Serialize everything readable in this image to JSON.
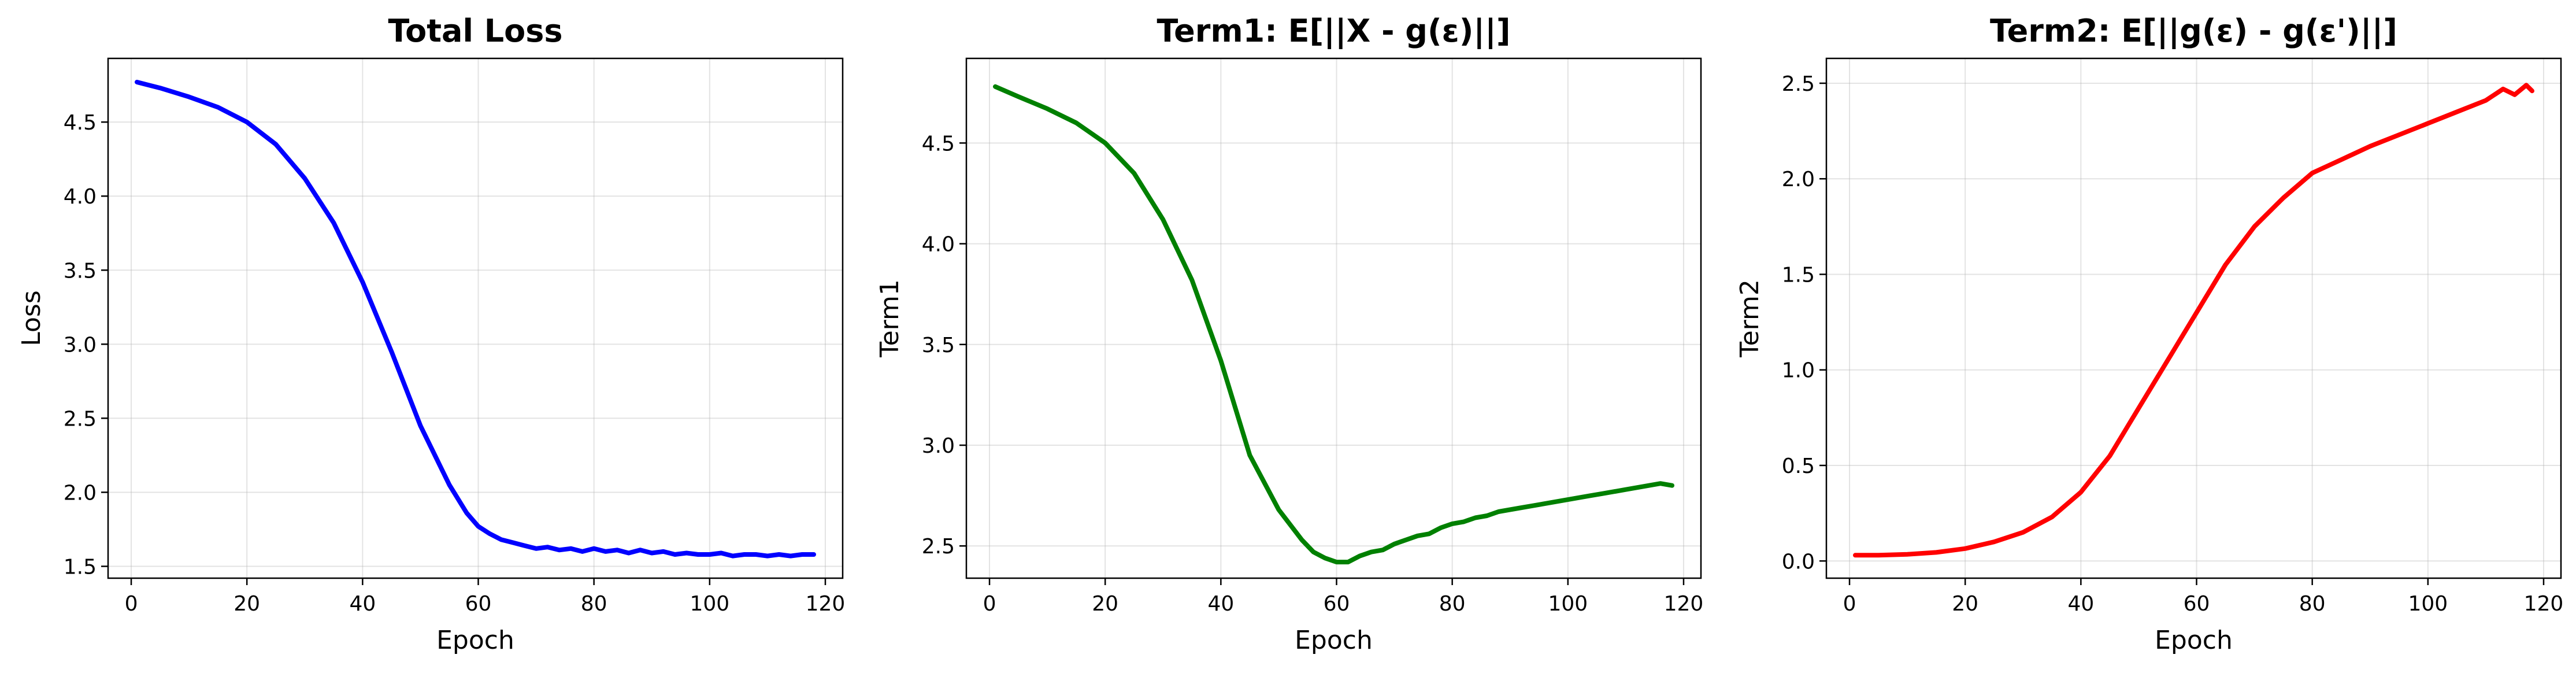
{
  "chart_data": [
    {
      "type": "line",
      "title": "Total Loss",
      "xlabel": "Epoch",
      "ylabel": "Loss",
      "xlim": [
        -4,
        123
      ],
      "ylim": [
        1.42,
        4.93
      ],
      "xticks": [
        0,
        20,
        40,
        60,
        80,
        100,
        120
      ],
      "yticks": [
        1.5,
        2.0,
        2.5,
        3.0,
        3.5,
        4.0,
        4.5
      ],
      "xtick_labels": [
        "0",
        "20",
        "40",
        "60",
        "80",
        "100",
        "120"
      ],
      "ytick_labels": [
        "1.5",
        "2.0",
        "2.5",
        "3.0",
        "3.5",
        "4.0",
        "4.5"
      ],
      "grid": true,
      "series": [
        {
          "color": "#0000ff",
          "x": [
            1,
            5,
            10,
            15,
            20,
            25,
            30,
            35,
            40,
            45,
            50,
            55,
            58,
            60,
            62,
            64,
            66,
            68,
            70,
            72,
            74,
            76,
            78,
            80,
            82,
            84,
            86,
            88,
            90,
            92,
            94,
            96,
            98,
            100,
            102,
            104,
            106,
            108,
            110,
            112,
            114,
            116,
            118
          ],
          "y": [
            4.77,
            4.73,
            4.67,
            4.6,
            4.5,
            4.35,
            4.12,
            3.82,
            3.42,
            2.95,
            2.45,
            2.05,
            1.86,
            1.77,
            1.72,
            1.68,
            1.66,
            1.64,
            1.62,
            1.63,
            1.61,
            1.62,
            1.6,
            1.62,
            1.6,
            1.61,
            1.59,
            1.61,
            1.59,
            1.6,
            1.58,
            1.59,
            1.58,
            1.58,
            1.59,
            1.57,
            1.58,
            1.58,
            1.57,
            1.58,
            1.57,
            1.58,
            1.58
          ]
        }
      ]
    },
    {
      "type": "line",
      "title": "Term1: E[||X - g(ε)||]",
      "xlabel": "Epoch",
      "ylabel": "Term1",
      "xlim": [
        -4,
        123
      ],
      "ylim": [
        2.34,
        4.92
      ],
      "xticks": [
        0,
        20,
        40,
        60,
        80,
        100,
        120
      ],
      "yticks": [
        2.5,
        3.0,
        3.5,
        4.0,
        4.5
      ],
      "xtick_labels": [
        "0",
        "20",
        "40",
        "60",
        "80",
        "100",
        "120"
      ],
      "ytick_labels": [
        "2.5",
        "3.0",
        "3.5",
        "4.0",
        "4.5"
      ],
      "grid": true,
      "series": [
        {
          "color": "#008000",
          "x": [
            1,
            5,
            10,
            15,
            20,
            25,
            30,
            35,
            40,
            45,
            50,
            54,
            56,
            58,
            60,
            62,
            64,
            66,
            68,
            70,
            72,
            74,
            76,
            78,
            80,
            82,
            84,
            86,
            88,
            90,
            92,
            94,
            96,
            98,
            100,
            102,
            104,
            106,
            108,
            110,
            112,
            114,
            116,
            118
          ],
          "y": [
            4.78,
            4.73,
            4.67,
            4.6,
            4.5,
            4.35,
            4.12,
            3.82,
            3.42,
            2.95,
            2.68,
            2.53,
            2.47,
            2.44,
            2.42,
            2.42,
            2.45,
            2.47,
            2.48,
            2.51,
            2.53,
            2.55,
            2.56,
            2.59,
            2.61,
            2.62,
            2.64,
            2.65,
            2.67,
            2.68,
            2.69,
            2.7,
            2.71,
            2.72,
            2.73,
            2.74,
            2.75,
            2.76,
            2.77,
            2.78,
            2.79,
            2.8,
            2.81,
            2.8
          ]
        }
      ]
    },
    {
      "type": "line",
      "title": "Term2: E[||g(ε) - g(ε')||]",
      "xlabel": "Epoch",
      "ylabel": "Term2",
      "xlim": [
        -4,
        123
      ],
      "ylim": [
        -0.09,
        2.63
      ],
      "xticks": [
        0,
        20,
        40,
        60,
        80,
        100,
        120
      ],
      "yticks": [
        0.0,
        0.5,
        1.0,
        1.5,
        2.0,
        2.5
      ],
      "xtick_labels": [
        "0",
        "20",
        "40",
        "60",
        "80",
        "100",
        "120"
      ],
      "ytick_labels": [
        "0.0",
        "0.5",
        "1.0",
        "1.5",
        "2.0",
        "2.5"
      ],
      "grid": true,
      "series": [
        {
          "color": "#ff0000",
          "x": [
            1,
            5,
            10,
            15,
            20,
            25,
            30,
            35,
            40,
            45,
            50,
            55,
            60,
            65,
            70,
            75,
            80,
            85,
            90,
            95,
            100,
            105,
            110,
            113,
            115,
            117,
            118
          ],
          "y": [
            0.03,
            0.03,
            0.035,
            0.045,
            0.065,
            0.1,
            0.15,
            0.23,
            0.36,
            0.55,
            0.8,
            1.05,
            1.3,
            1.55,
            1.75,
            1.9,
            2.03,
            2.1,
            2.17,
            2.23,
            2.29,
            2.35,
            2.41,
            2.47,
            2.44,
            2.49,
            2.46
          ]
        }
      ]
    }
  ]
}
